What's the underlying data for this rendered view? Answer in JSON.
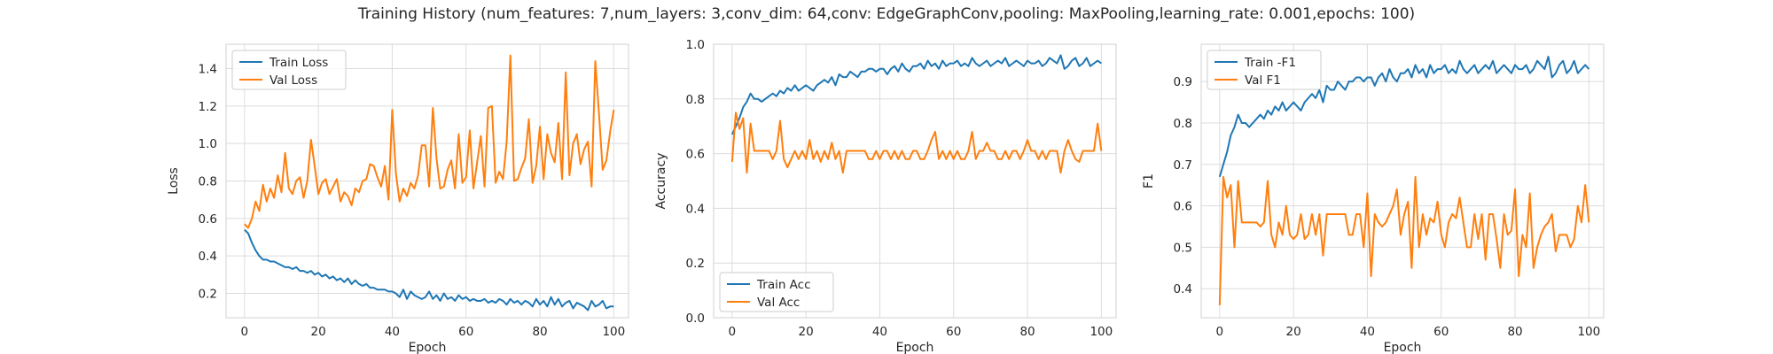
{
  "figure": {
    "suptitle": "Training History (num_features: 7,num_layers: 3,conv_dim: 64,conv: EdgeGraphConv,pooling: MaxPooling,learning_rate: 0.001,epochs: 100)"
  },
  "chart_data": [
    {
      "type": "line",
      "title": "",
      "xlabel": "Epoch",
      "ylabel": "Loss",
      "xlim": [
        -5,
        104
      ],
      "ylim": [
        0.07,
        1.53
      ],
      "xticks": [
        0,
        20,
        40,
        60,
        80,
        100
      ],
      "xtick_labels": [
        "0",
        "20",
        "40",
        "60",
        "80",
        "100"
      ],
      "yticks": [
        0.2,
        0.4,
        0.6,
        0.8,
        1.0,
        1.2,
        1.4
      ],
      "ytick_labels": [
        "0.2",
        "0.4",
        "0.6",
        "0.8",
        "1.0",
        "1.2",
        "1.4"
      ],
      "grid": true,
      "legend": "upper-left",
      "series": [
        {
          "name": "Train Loss",
          "color": "#1f77b4",
          "values": [
            0.54,
            0.52,
            0.47,
            0.43,
            0.4,
            0.38,
            0.38,
            0.37,
            0.37,
            0.36,
            0.35,
            0.34,
            0.34,
            0.33,
            0.34,
            0.32,
            0.32,
            0.31,
            0.32,
            0.3,
            0.31,
            0.29,
            0.3,
            0.28,
            0.29,
            0.27,
            0.28,
            0.26,
            0.28,
            0.25,
            0.27,
            0.25,
            0.24,
            0.25,
            0.23,
            0.23,
            0.22,
            0.22,
            0.22,
            0.21,
            0.21,
            0.2,
            0.18,
            0.22,
            0.17,
            0.21,
            0.19,
            0.18,
            0.17,
            0.18,
            0.21,
            0.17,
            0.19,
            0.16,
            0.2,
            0.17,
            0.18,
            0.16,
            0.19,
            0.17,
            0.18,
            0.16,
            0.17,
            0.16,
            0.16,
            0.17,
            0.15,
            0.16,
            0.15,
            0.17,
            0.16,
            0.14,
            0.17,
            0.15,
            0.16,
            0.14,
            0.16,
            0.15,
            0.13,
            0.17,
            0.14,
            0.16,
            0.13,
            0.18,
            0.14,
            0.17,
            0.13,
            0.15,
            0.16,
            0.12,
            0.15,
            0.14,
            0.13,
            0.11,
            0.16,
            0.13,
            0.14,
            0.16,
            0.12,
            0.13,
            0.13
          ]
        },
        {
          "name": "Val Loss",
          "color": "#ff7f0e",
          "values": [
            0.57,
            0.55,
            0.6,
            0.69,
            0.64,
            0.78,
            0.69,
            0.76,
            0.71,
            0.83,
            0.74,
            0.95,
            0.76,
            0.73,
            0.8,
            0.82,
            0.71,
            0.8,
            1.02,
            0.88,
            0.73,
            0.79,
            0.81,
            0.73,
            0.77,
            0.81,
            0.69,
            0.74,
            0.72,
            0.67,
            0.76,
            0.74,
            0.8,
            0.81,
            0.89,
            0.88,
            0.82,
            0.77,
            0.88,
            0.7,
            1.18,
            0.84,
            0.69,
            0.76,
            0.72,
            0.79,
            0.76,
            0.83,
            0.99,
            0.99,
            0.77,
            1.19,
            0.92,
            0.76,
            0.77,
            0.86,
            0.91,
            0.76,
            1.05,
            0.79,
            0.82,
            1.07,
            0.76,
            0.9,
            1.04,
            0.77,
            1.19,
            1.2,
            0.79,
            0.85,
            0.81,
            1.01,
            1.47,
            0.8,
            0.81,
            0.87,
            0.92,
            1.13,
            0.79,
            0.88,
            1.09,
            0.81,
            1.05,
            0.95,
            0.9,
            1.11,
            0.81,
            1.38,
            0.83,
            1.0,
            1.05,
            0.89,
            0.97,
            1.01,
            0.77,
            1.44,
            1.16,
            0.86,
            0.91,
            1.06,
            1.18
          ]
        }
      ]
    },
    {
      "type": "line",
      "title": "",
      "xlabel": "Epoch",
      "ylabel": "Accuracy",
      "xlim": [
        -5,
        104
      ],
      "ylim": [
        0.0,
        1.0
      ],
      "xticks": [
        0,
        20,
        40,
        60,
        80,
        100
      ],
      "xtick_labels": [
        "0",
        "20",
        "40",
        "60",
        "80",
        "100"
      ],
      "yticks": [
        0.0,
        0.2,
        0.4,
        0.6,
        0.8,
        1.0
      ],
      "ytick_labels": [
        "0.0",
        "0.2",
        "0.4",
        "0.6",
        "0.8",
        "1.0"
      ],
      "grid": true,
      "legend": "lower-left",
      "series": [
        {
          "name": "Train Acc",
          "color": "#1f77b4",
          "values": [
            0.67,
            0.7,
            0.73,
            0.77,
            0.79,
            0.82,
            0.8,
            0.8,
            0.79,
            0.8,
            0.81,
            0.82,
            0.81,
            0.83,
            0.82,
            0.84,
            0.83,
            0.85,
            0.83,
            0.84,
            0.85,
            0.84,
            0.83,
            0.85,
            0.86,
            0.87,
            0.86,
            0.88,
            0.85,
            0.89,
            0.88,
            0.88,
            0.9,
            0.89,
            0.88,
            0.9,
            0.9,
            0.91,
            0.91,
            0.9,
            0.91,
            0.91,
            0.89,
            0.91,
            0.92,
            0.9,
            0.93,
            0.91,
            0.9,
            0.92,
            0.92,
            0.93,
            0.91,
            0.94,
            0.92,
            0.93,
            0.91,
            0.94,
            0.92,
            0.93,
            0.93,
            0.94,
            0.92,
            0.93,
            0.92,
            0.95,
            0.93,
            0.92,
            0.93,
            0.94,
            0.92,
            0.93,
            0.94,
            0.93,
            0.95,
            0.92,
            0.93,
            0.94,
            0.93,
            0.92,
            0.94,
            0.93,
            0.93,
            0.94,
            0.92,
            0.93,
            0.95,
            0.94,
            0.93,
            0.96,
            0.91,
            0.92,
            0.94,
            0.95,
            0.92,
            0.93,
            0.95,
            0.92,
            0.93,
            0.94,
            0.93
          ]
        },
        {
          "name": "Val Acc",
          "color": "#ff7f0e",
          "values": [
            0.57,
            0.75,
            0.69,
            0.73,
            0.53,
            0.71,
            0.61,
            0.61,
            0.61,
            0.61,
            0.61,
            0.58,
            0.61,
            0.72,
            0.58,
            0.55,
            0.58,
            0.61,
            0.58,
            0.61,
            0.58,
            0.65,
            0.58,
            0.61,
            0.57,
            0.61,
            0.58,
            0.64,
            0.58,
            0.61,
            0.53,
            0.61,
            0.61,
            0.61,
            0.61,
            0.61,
            0.61,
            0.58,
            0.58,
            0.61,
            0.58,
            0.61,
            0.61,
            0.58,
            0.61,
            0.58,
            0.61,
            0.58,
            0.58,
            0.61,
            0.61,
            0.58,
            0.58,
            0.61,
            0.65,
            0.68,
            0.58,
            0.61,
            0.58,
            0.61,
            0.58,
            0.61,
            0.58,
            0.58,
            0.61,
            0.68,
            0.58,
            0.61,
            0.61,
            0.64,
            0.61,
            0.61,
            0.58,
            0.58,
            0.61,
            0.58,
            0.61,
            0.61,
            0.58,
            0.61,
            0.65,
            0.61,
            0.61,
            0.58,
            0.61,
            0.58,
            0.61,
            0.61,
            0.61,
            0.53,
            0.61,
            0.65,
            0.61,
            0.58,
            0.57,
            0.61,
            0.61,
            0.61,
            0.61,
            0.71,
            0.61
          ]
        }
      ]
    },
    {
      "type": "line",
      "title": "",
      "xlabel": "Epoch",
      "ylabel": "F1",
      "xlim": [
        -5,
        104
      ],
      "ylim": [
        0.33,
        0.99
      ],
      "xticks": [
        0,
        20,
        40,
        60,
        80,
        100
      ],
      "xtick_labels": [
        "0",
        "20",
        "40",
        "60",
        "80",
        "100"
      ],
      "yticks": [
        0.4,
        0.5,
        0.6,
        0.7,
        0.8,
        0.9
      ],
      "ytick_labels": [
        "0.4",
        "0.5",
        "0.6",
        "0.7",
        "0.8",
        "0.9"
      ],
      "grid": true,
      "legend": "upper-left",
      "series": [
        {
          "name": "Train -F1",
          "color": "#1f77b4",
          "values": [
            0.67,
            0.7,
            0.73,
            0.77,
            0.79,
            0.82,
            0.8,
            0.8,
            0.79,
            0.8,
            0.81,
            0.82,
            0.81,
            0.83,
            0.82,
            0.84,
            0.83,
            0.85,
            0.83,
            0.84,
            0.85,
            0.84,
            0.83,
            0.85,
            0.86,
            0.87,
            0.86,
            0.88,
            0.85,
            0.89,
            0.88,
            0.88,
            0.9,
            0.89,
            0.88,
            0.9,
            0.9,
            0.91,
            0.91,
            0.9,
            0.91,
            0.91,
            0.89,
            0.91,
            0.92,
            0.9,
            0.93,
            0.91,
            0.9,
            0.92,
            0.92,
            0.93,
            0.91,
            0.94,
            0.92,
            0.93,
            0.91,
            0.94,
            0.92,
            0.93,
            0.93,
            0.94,
            0.92,
            0.93,
            0.92,
            0.95,
            0.93,
            0.92,
            0.93,
            0.94,
            0.92,
            0.93,
            0.94,
            0.93,
            0.95,
            0.92,
            0.93,
            0.94,
            0.93,
            0.92,
            0.94,
            0.93,
            0.93,
            0.94,
            0.92,
            0.93,
            0.95,
            0.94,
            0.93,
            0.96,
            0.91,
            0.92,
            0.94,
            0.95,
            0.92,
            0.93,
            0.95,
            0.92,
            0.93,
            0.94,
            0.93
          ]
        },
        {
          "name": "Val F1",
          "color": "#ff7f0e",
          "values": [
            0.36,
            0.67,
            0.62,
            0.65,
            0.5,
            0.66,
            0.56,
            0.56,
            0.56,
            0.56,
            0.56,
            0.55,
            0.56,
            0.66,
            0.53,
            0.5,
            0.56,
            0.53,
            0.6,
            0.53,
            0.52,
            0.53,
            0.58,
            0.52,
            0.53,
            0.58,
            0.53,
            0.58,
            0.48,
            0.58,
            0.58,
            0.58,
            0.58,
            0.58,
            0.58,
            0.53,
            0.53,
            0.58,
            0.58,
            0.5,
            0.63,
            0.43,
            0.58,
            0.56,
            0.55,
            0.56,
            0.58,
            0.6,
            0.64,
            0.53,
            0.58,
            0.61,
            0.45,
            0.67,
            0.5,
            0.58,
            0.53,
            0.57,
            0.56,
            0.61,
            0.53,
            0.5,
            0.56,
            0.58,
            0.57,
            0.62,
            0.56,
            0.5,
            0.5,
            0.58,
            0.52,
            0.58,
            0.47,
            0.58,
            0.58,
            0.52,
            0.45,
            0.58,
            0.53,
            0.54,
            0.64,
            0.43,
            0.53,
            0.5,
            0.63,
            0.45,
            0.5,
            0.53,
            0.55,
            0.56,
            0.58,
            0.49,
            0.53,
            0.53,
            0.53,
            0.5,
            0.52,
            0.6,
            0.56,
            0.65,
            0.56
          ]
        }
      ]
    }
  ]
}
